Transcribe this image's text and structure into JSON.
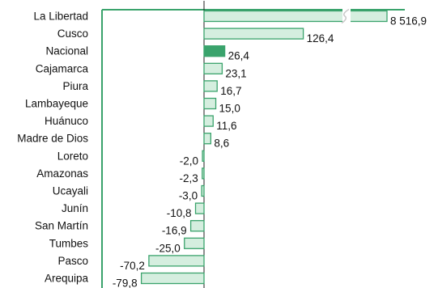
{
  "chart_data": {
    "type": "bar",
    "orientation": "horizontal",
    "categories": [
      "La Libertad",
      "Cusco",
      "Nacional",
      "Cajamarca",
      "Piura",
      "Lambayeque",
      "Huánuco",
      "Madre de Dios",
      "Loreto",
      "Amazonas",
      "Ucayali",
      "Junín",
      "San Martín",
      "Tumbes",
      "Pasco",
      "Arequipa"
    ],
    "values": [
      8516.9,
      126.4,
      26.4,
      23.1,
      16.7,
      15.0,
      11.6,
      8.6,
      -2.0,
      -2.3,
      -3.0,
      -10.8,
      -16.9,
      -25.0,
      -70.2,
      -79.8
    ],
    "value_labels": [
      "8 516,9",
      "126,4",
      "26,4",
      "23,1",
      "16,7",
      "15,0",
      "11,6",
      "8,6",
      "-2,0",
      "-2,3",
      "-3,0",
      "-10,8",
      "-16,9",
      "-25,0",
      "-70,2",
      "-79,8"
    ],
    "highlight": "Nacional",
    "axis_break_on": "La Libertad",
    "title": "",
    "xlabel": "",
    "ylabel": "",
    "grid": false,
    "legend": "none",
    "colors": {
      "bar_fill": "#d5eedf",
      "bar_stroke": "#3aa36c",
      "highlight_fill": "#3aa36c",
      "frame": "#3aa36c",
      "zero_line": "#222222",
      "text": "#111111"
    }
  }
}
